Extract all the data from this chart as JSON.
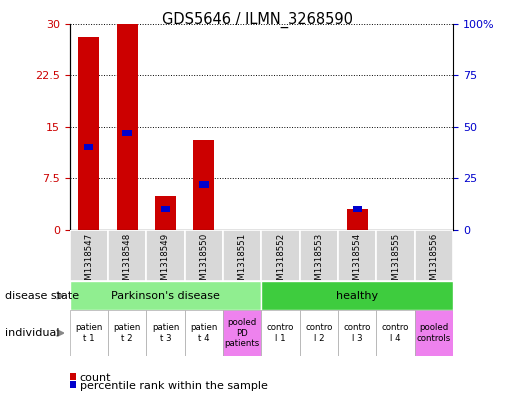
{
  "title": "GDS5646 / ILMN_3268590",
  "samples": [
    "GSM1318547",
    "GSM1318548",
    "GSM1318549",
    "GSM1318550",
    "GSM1318551",
    "GSM1318552",
    "GSM1318553",
    "GSM1318554",
    "GSM1318555",
    "GSM1318556"
  ],
  "counts": [
    28,
    30,
    5,
    13,
    0,
    0,
    0,
    3,
    0,
    0
  ],
  "percentile_ranks": [
    40,
    47,
    10,
    22,
    0,
    0,
    0,
    10,
    0,
    0
  ],
  "ylim_left": [
    0,
    30
  ],
  "ylim_right": [
    0,
    100
  ],
  "yticks_left": [
    0,
    7.5,
    15,
    22.5,
    30
  ],
  "yticks_right": [
    0,
    25,
    50,
    75,
    100
  ],
  "ytick_labels_left": [
    "0",
    "7.5",
    "15",
    "22.5",
    "30"
  ],
  "ytick_labels_right": [
    "0",
    "25",
    "50",
    "75",
    "100%"
  ],
  "pd_color": "#90EE90",
  "healthy_color": "#3ECC3E",
  "pooled_color": "#EE82EE",
  "white_cell_color": "#ffffff",
  "gray_cell_color": "#D8D8D8",
  "bar_color": "#CC0000",
  "percentile_color": "#0000CC",
  "bar_width": 0.55,
  "axis_color_left": "#CC0000",
  "axis_color_right": "#0000CC",
  "background_color": "#ffffff",
  "individual_labels": [
    "patien\nt 1",
    "patien\nt 2",
    "patien\nt 3",
    "patien\nt 4",
    "pooled\nPD\npatients",
    "contro\nl 1",
    "contro\nl 2",
    "contro\nl 3",
    "contro\nl 4",
    "pooled\ncontrols"
  ],
  "individual_bg": [
    "#ffffff",
    "#ffffff",
    "#ffffff",
    "#ffffff",
    "#EE82EE",
    "#ffffff",
    "#ffffff",
    "#ffffff",
    "#ffffff",
    "#EE82EE"
  ]
}
